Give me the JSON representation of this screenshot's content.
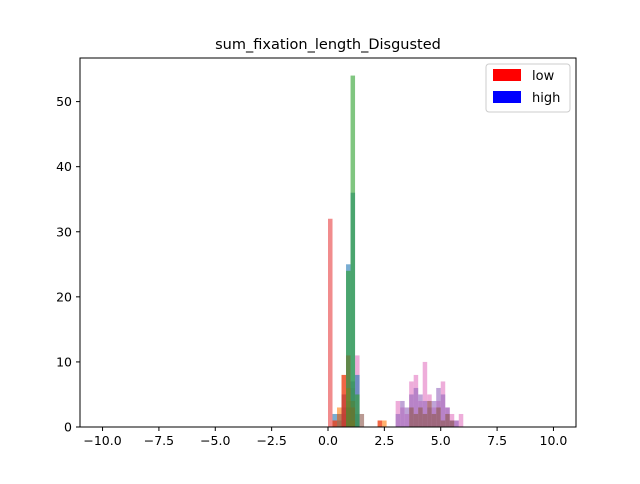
{
  "chart_data": {
    "type": "bar",
    "title": "sum_fixation_length_Disgusted",
    "xlabel": "",
    "ylabel": "",
    "xlim": [
      -11,
      11
    ],
    "ylim": [
      0,
      56.7
    ],
    "xticks": [
      -10.0,
      -7.5,
      -5.0,
      -2.5,
      0.0,
      2.5,
      5.0,
      7.5,
      10.0
    ],
    "xtick_labels": [
      "−10.0",
      "−7.5",
      "−5.0",
      "−2.5",
      "0.0",
      "2.5",
      "5.0",
      "7.5",
      "10.0"
    ],
    "yticks": [
      0,
      10,
      20,
      30,
      40,
      50
    ],
    "ytick_labels": [
      "0",
      "10",
      "20",
      "30",
      "40",
      "50"
    ],
    "bin_width": 0.2,
    "grid": false,
    "legend": {
      "placement": "top-right",
      "entries": [
        {
          "label": "low",
          "color": "#ff0000"
        },
        {
          "label": "high",
          "color": "#0000ff"
        }
      ]
    },
    "series": [
      {
        "color": "#e377c2",
        "opacity": 0.6,
        "bars": [
          [
            0.8,
            3
          ],
          [
            1.0,
            6
          ],
          [
            1.2,
            11
          ],
          [
            3.0,
            4
          ],
          [
            3.2,
            3
          ],
          [
            3.4,
            2
          ],
          [
            3.6,
            7
          ],
          [
            3.8,
            8
          ],
          [
            4.0,
            4
          ],
          [
            4.2,
            10
          ],
          [
            4.4,
            5
          ],
          [
            4.6,
            3
          ],
          [
            4.8,
            4
          ],
          [
            5.0,
            7
          ],
          [
            5.2,
            3
          ],
          [
            5.4,
            2
          ],
          [
            5.6,
            1
          ],
          [
            5.8,
            2
          ]
        ]
      },
      {
        "color": "#9467bd",
        "opacity": 0.6,
        "bars": [
          [
            0.6,
            2
          ],
          [
            0.8,
            4
          ],
          [
            1.0,
            7
          ],
          [
            1.2,
            2
          ],
          [
            3.0,
            2
          ],
          [
            3.2,
            4
          ],
          [
            3.4,
            3
          ],
          [
            3.6,
            5
          ],
          [
            3.8,
            6
          ],
          [
            4.0,
            5
          ],
          [
            4.2,
            4
          ],
          [
            4.4,
            3
          ],
          [
            4.6,
            4
          ],
          [
            4.8,
            6
          ],
          [
            5.0,
            5
          ],
          [
            5.2,
            3
          ],
          [
            5.4,
            1
          ],
          [
            5.6,
            1
          ]
        ]
      },
      {
        "color": "#1f77b4",
        "opacity": 0.6,
        "bars": [
          [
            0.2,
            2
          ],
          [
            0.4,
            1
          ],
          [
            0.6,
            3
          ],
          [
            0.8,
            25
          ],
          [
            1.0,
            36
          ],
          [
            1.2,
            8
          ]
        ]
      },
      {
        "color": "#ff7f0e",
        "opacity": 0.6,
        "bars": [
          [
            0.2,
            1
          ],
          [
            0.4,
            3
          ],
          [
            0.6,
            8
          ],
          [
            0.8,
            6
          ],
          [
            1.0,
            1
          ],
          [
            2.2,
            1
          ],
          [
            2.4,
            1
          ]
        ]
      },
      {
        "color": "#8c564b",
        "opacity": 0.6,
        "bars": [
          [
            0.4,
            2
          ],
          [
            0.6,
            5
          ],
          [
            0.8,
            3
          ],
          [
            1.0,
            4
          ],
          [
            1.4,
            2
          ],
          [
            3.6,
            3
          ],
          [
            3.8,
            2
          ],
          [
            4.0,
            3
          ],
          [
            4.2,
            2
          ],
          [
            4.4,
            4
          ],
          [
            4.6,
            2
          ],
          [
            4.8,
            3
          ],
          [
            5.0,
            1
          ],
          [
            5.2,
            2
          ],
          [
            5.4,
            1
          ]
        ]
      },
      {
        "color": "#e41a1c",
        "opacity": 0.5,
        "bars": [
          [
            0.0,
            32
          ],
          [
            0.2,
            1
          ],
          [
            0.6,
            8
          ],
          [
            0.8,
            11
          ],
          [
            1.0,
            3
          ],
          [
            2.2,
            1
          ]
        ]
      },
      {
        "color": "#2ca02c",
        "opacity": 0.6,
        "bars": [
          [
            0.8,
            24
          ],
          [
            1.0,
            54
          ],
          [
            1.2,
            5
          ]
        ]
      }
    ]
  }
}
